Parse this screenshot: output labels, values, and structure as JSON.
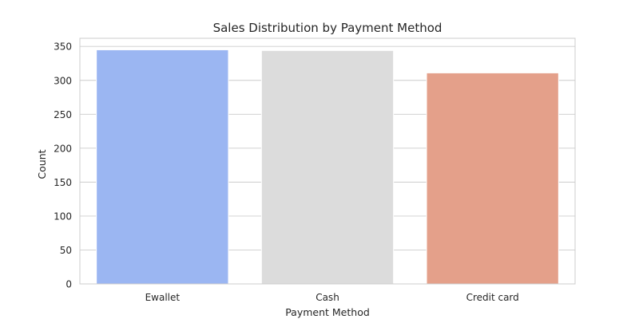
{
  "chart_data": {
    "type": "bar",
    "title": "Sales Distribution by Payment Method",
    "xlabel": "Payment Method",
    "ylabel": "Count",
    "categories": [
      "Ewallet",
      "Cash",
      "Credit card"
    ],
    "values": [
      345,
      344,
      311
    ],
    "colors": [
      "#9bb6f2",
      "#dcdcdc",
      "#e4a08a"
    ],
    "ylim": [
      0,
      362
    ],
    "yticks": [
      0,
      50,
      100,
      150,
      200,
      250,
      300,
      350
    ],
    "grid": true,
    "grid_axis": "y",
    "style": {
      "grid_color": "#cccccc",
      "frame_color": "#cccccc",
      "text_color": "#262626",
      "bar_edge_color": "#ffffff"
    }
  }
}
